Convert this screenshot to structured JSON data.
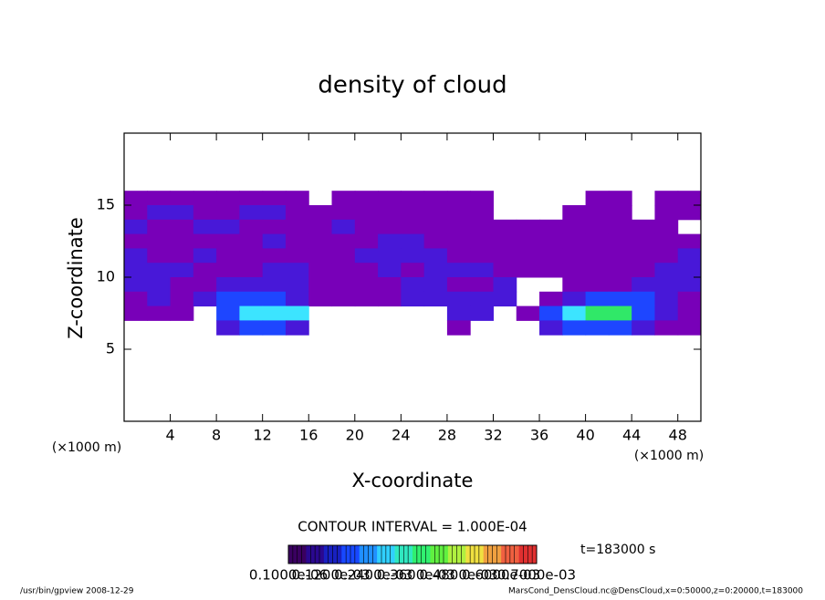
{
  "chart_data": {
    "type": "heatmap",
    "title": "density of cloud",
    "xlabel": "X-coordinate",
    "ylabel": "Z-coordinate",
    "x_unit_label": "(×1000 m)",
    "xlim": [
      0,
      50
    ],
    "ylim": [
      0,
      20
    ],
    "xticks": [
      4,
      8,
      12,
      16,
      20,
      24,
      28,
      32,
      36,
      40,
      44,
      48
    ],
    "yticks": [
      5,
      10,
      15
    ],
    "x": [
      0,
      2,
      4,
      6,
      8,
      10,
      12,
      14,
      16,
      18,
      20,
      22,
      24,
      26,
      28,
      30,
      32,
      34,
      36,
      38,
      40,
      42,
      44,
      46,
      48,
      50
    ],
    "z": [
      16,
      15,
      14,
      13,
      12,
      11,
      10,
      9,
      8,
      7,
      6
    ],
    "values": [
      [
        1e-05,
        1e-05,
        1e-05,
        1e-05,
        1e-05,
        1e-05,
        1e-05,
        1e-05,
        null,
        1e-05,
        1e-05,
        1e-05,
        1e-05,
        1e-05,
        1e-05,
        1e-05,
        null,
        null,
        null,
        null,
        1e-05,
        1e-05,
        null,
        1e-05,
        1e-05
      ],
      [
        1e-05,
        3e-05,
        3e-05,
        1e-05,
        1e-05,
        3e-05,
        3e-05,
        1e-05,
        1e-05,
        1e-05,
        1e-05,
        1e-05,
        1e-05,
        1e-05,
        1e-05,
        1e-05,
        null,
        null,
        null,
        1e-05,
        1e-05,
        1e-05,
        null,
        1e-05,
        1e-05
      ],
      [
        3e-05,
        1e-05,
        1e-05,
        3e-05,
        3e-05,
        1e-05,
        1e-05,
        1e-05,
        1e-05,
        3e-05,
        1e-05,
        1e-05,
        1e-05,
        1e-05,
        1e-05,
        1e-05,
        1e-05,
        1e-05,
        1e-05,
        1e-05,
        1e-05,
        1e-05,
        1e-05,
        1e-05,
        null
      ],
      [
        1e-05,
        1e-05,
        1e-05,
        1e-05,
        1e-05,
        1e-05,
        3e-05,
        1e-05,
        1e-05,
        1e-05,
        1e-05,
        3e-05,
        3e-05,
        1e-05,
        1e-05,
        1e-05,
        1e-05,
        1e-05,
        1e-05,
        1e-05,
        1e-05,
        1e-05,
        1e-05,
        1e-05,
        1e-05
      ],
      [
        3e-05,
        1e-05,
        1e-05,
        3e-05,
        1e-05,
        1e-05,
        1e-05,
        1e-05,
        1e-05,
        1e-05,
        3e-05,
        3e-05,
        3e-05,
        3e-05,
        1e-05,
        1e-05,
        1e-05,
        1e-05,
        1e-05,
        1e-05,
        1e-05,
        1e-05,
        1e-05,
        1e-05,
        3e-05
      ],
      [
        3e-05,
        3e-05,
        3e-05,
        1e-05,
        1e-05,
        1e-05,
        3e-05,
        3e-05,
        1e-05,
        1e-05,
        1e-05,
        3e-05,
        1e-05,
        3e-05,
        3e-05,
        3e-05,
        1e-05,
        1e-05,
        1e-05,
        1e-05,
        1e-05,
        1e-05,
        1e-05,
        3e-05,
        3e-05
      ],
      [
        3e-05,
        3e-05,
        1e-05,
        1e-05,
        3e-05,
        3e-05,
        3e-05,
        3e-05,
        1e-05,
        1e-05,
        1e-05,
        1e-05,
        3e-05,
        3e-05,
        1e-05,
        1e-05,
        3e-05,
        null,
        null,
        1e-05,
        1e-05,
        1e-05,
        3e-05,
        3e-05,
        3e-05
      ],
      [
        1e-05,
        3e-05,
        1e-05,
        3e-05,
        0.0001,
        0.0001,
        0.0001,
        3e-05,
        1e-05,
        1e-05,
        1e-05,
        1e-05,
        3e-05,
        3e-05,
        3e-05,
        3e-05,
        3e-05,
        null,
        1e-05,
        3e-05,
        0.0001,
        0.0001,
        0.0001,
        3e-05,
        1e-05
      ],
      [
        1e-05,
        1e-05,
        1e-05,
        null,
        0.0001,
        0.0003,
        0.0003,
        0.0003,
        null,
        null,
        null,
        null,
        null,
        null,
        3e-05,
        3e-05,
        null,
        1e-05,
        0.0001,
        0.0003,
        0.0006,
        0.0006,
        0.0001,
        3e-05,
        1e-05
      ],
      [
        null,
        null,
        null,
        null,
        3e-05,
        0.0001,
        0.0001,
        3e-05,
        null,
        null,
        null,
        null,
        null,
        null,
        1e-05,
        null,
        null,
        null,
        3e-05,
        0.0001,
        0.0001,
        0.0001,
        3e-05,
        1e-05,
        1e-05
      ]
    ],
    "levels": [
      1e-05,
      3e-05,
      0.0001,
      0.0003,
      0.0006
    ],
    "level_colors": [
      "#7800b8",
      "#4818d8",
      "#1e46ff",
      "#3ce4ff",
      "#30e868"
    ],
    "contour_interval_label": "CONTOUR INTERVAL = 1.000E-04",
    "time_label": "t=183000 s",
    "colorbar_lim": [
      0,
      0.0007
    ],
    "colorbar_colors": [
      "#3a0060",
      "#2a0890",
      "#1820c0",
      "#1848ff",
      "#2090ff",
      "#30d0ff",
      "#30e8c0",
      "#30f070",
      "#60f040",
      "#b0f040",
      "#f0e040",
      "#f0a040",
      "#f06040",
      "#e03030"
    ],
    "colorbar_ticks": [
      {
        "value": 1e-07,
        "label": "0.1000e-06"
      },
      {
        "value": 0.00012,
        "label": "0.1200e-03"
      },
      {
        "value": 0.00024,
        "label": "0.2400e-03"
      },
      {
        "value": 0.00036,
        "label": "0.3600e-03"
      },
      {
        "value": 0.00048,
        "label": "0.4800e-03"
      },
      {
        "value": 0.0006,
        "label": "0.6000e-03"
      },
      {
        "value": 0.0007,
        "label": "0.7000e-03"
      }
    ],
    "footer_left": "/usr/bin/gpview   2008-12-29",
    "footer_right": "MarsCond_DensCloud.nc@DensCloud,x=0:50000,z=0:20000,t=183000"
  }
}
